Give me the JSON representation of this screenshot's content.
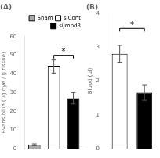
{
  "chart_data": [
    {
      "type": "bar",
      "title": "(A)",
      "categories": [
        "Sham",
        "siCont",
        "siJmpd3"
      ],
      "values": [
        2.0,
        44.0,
        27.0
      ],
      "errors": [
        0.5,
        3.5,
        3.0
      ],
      "colors": [
        "#aaaaaa",
        "#ffffff",
        "#000000"
      ],
      "ylabel": "Evans blue (μg dye / g tissue)",
      "ylim": [
        0,
        60
      ],
      "yticks": [
        0,
        10,
        20,
        30,
        40,
        50,
        60
      ],
      "grid": false,
      "legend": "upper right",
      "tick_labels": "y",
      "annotations": [
        {
          "text": "*",
          "x": [
            "siCont",
            "siJmpd3"
          ],
          "y": 50
        }
      ]
    },
    {
      "type": "bar",
      "title": "(B)",
      "categories": [
        "siCont",
        "siJmpd3"
      ],
      "values": [
        2.8,
        1.65
      ],
      "errors": [
        0.25,
        0.22
      ],
      "colors": [
        "#ffffff",
        "#000000"
      ],
      "ylabel": "Blood (μl)",
      "ylim": [
        0,
        4
      ],
      "yticks": [
        0,
        1,
        2,
        3,
        4
      ],
      "grid": false,
      "tick_labels": "y",
      "annotations": [
        {
          "text": "*",
          "x": [
            "siCont",
            "siJmpd3"
          ],
          "y": 3.55
        }
      ]
    }
  ]
}
